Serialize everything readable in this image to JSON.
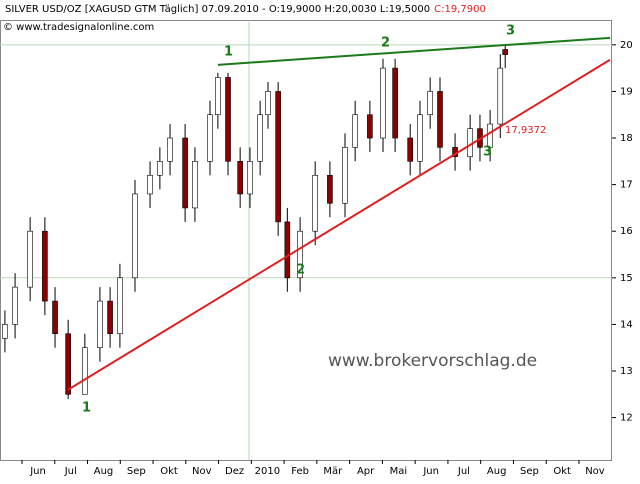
{
  "header": {
    "instrument": "SILVER USD/OZ [XAGUSD GTM  Täglich] 07.09.2010 - O:19,9000 H:20,0030 L:19,5000",
    "close": "C:19,7900",
    "copyright": "© www.tradesignalonline.com",
    "watermark": "www.brokervorschlag.de"
  },
  "chart_data": {
    "type": "candlestick",
    "x": [
      -1.01,
      -0.7,
      -0.24,
      0.21,
      0.52,
      0.92,
      1.43,
      1.89,
      2.2,
      2.5,
      2.96,
      3.42,
      3.72,
      4.03,
      4.49,
      4.79,
      5.25,
      5.49,
      5.8,
      6.17,
      6.47,
      6.78,
      7.02,
      7.33,
      7.61,
      8.0,
      8.46,
      8.91,
      9.37,
      9.68,
      10.13,
      10.53,
      10.9,
      11.36,
      11.66,
      11.97,
      12.27,
      12.73,
      13.19,
      13.49,
      13.8,
      14.11,
      14.26
    ],
    "open": [
      13.7,
      14,
      14.8,
      16,
      14.5,
      13.8,
      12.5,
      13.5,
      14.5,
      13.8,
      15,
      16.8,
      17.2,
      17.5,
      18,
      16.5,
      17.5,
      18.5,
      19.3,
      17.5,
      16.8,
      17.5,
      18.5,
      19,
      16.2,
      15,
      16,
      17.2,
      16.6,
      17.8,
      18.5,
      18,
      19.5,
      18,
      17.5,
      18.5,
      19,
      17.8,
      17.6,
      18.2,
      17.8,
      18.3,
      19.9
    ],
    "high": [
      14.3,
      15.1,
      16.3,
      16.3,
      14.8,
      14.1,
      13.8,
      14.8,
      14.8,
      15.3,
      17.1,
      17.5,
      17.8,
      18.3,
      18.3,
      17.8,
      18.8,
      19.4,
      19.4,
      17.8,
      17.8,
      18.8,
      19.2,
      19.2,
      16.5,
      16.3,
      17.5,
      17.5,
      18.1,
      18.8,
      18.8,
      19.7,
      19.7,
      18.3,
      18.8,
      19.3,
      19.3,
      18.1,
      18.5,
      18.5,
      18.6,
      19.8,
      20.003
    ],
    "low": [
      13.4,
      13.7,
      14.5,
      14.2,
      13.5,
      12.4,
      12.5,
      13.2,
      13.5,
      13.5,
      14.7,
      16.5,
      16.9,
      17.2,
      16.2,
      16.2,
      17.2,
      18.2,
      17.2,
      16.5,
      16.5,
      17.2,
      18.2,
      15.9,
      14.7,
      14.7,
      15.7,
      16.3,
      16.3,
      17.5,
      17.7,
      17.7,
      17.7,
      17.2,
      17.2,
      18.2,
      17.5,
      17.3,
      17.3,
      17.5,
      17.5,
      18.0,
      19.5
    ],
    "close": [
      14,
      14.8,
      16,
      14.5,
      13.8,
      12.5,
      13.5,
      14.5,
      13.8,
      15,
      16.8,
      17.2,
      17.5,
      18,
      16.5,
      17.5,
      18.5,
      19.3,
      17.5,
      16.8,
      17.5,
      18.5,
      19,
      16.2,
      15,
      16,
      17.2,
      16.6,
      17.8,
      18.5,
      18,
      19.5,
      18,
      17.5,
      18.5,
      19,
      17.8,
      17.6,
      18.2,
      17.8,
      18.3,
      19.5,
      19.79
    ],
    "up_color": "#ffffff",
    "down_color": "#8b0000",
    "xlim": [
      -1.16,
      17.52
    ],
    "ylim": [
      11.09,
      20.49
    ],
    "xticks": [
      {
        "value": 0,
        "label": "Jun"
      },
      {
        "value": 1,
        "label": "Jul"
      },
      {
        "value": 2,
        "label": "Aug"
      },
      {
        "value": 3,
        "label": "Sep"
      },
      {
        "value": 4,
        "label": "Okt"
      },
      {
        "value": 5,
        "label": "Nov"
      },
      {
        "value": 6,
        "label": "Dez"
      },
      {
        "value": 7,
        "label": "2010"
      },
      {
        "value": 8,
        "label": "Feb"
      },
      {
        "value": 9,
        "label": "Mär"
      },
      {
        "value": 10,
        "label": "Apr"
      },
      {
        "value": 11,
        "label": "Mai"
      },
      {
        "value": 12,
        "label": "Jun"
      },
      {
        "value": 13,
        "label": "Jul"
      },
      {
        "value": 14,
        "label": "Aug"
      },
      {
        "value": 15,
        "label": "Sep"
      },
      {
        "value": 16,
        "label": "Okt"
      },
      {
        "value": 17,
        "label": "Nov"
      }
    ],
    "yticks": [
      12,
      13,
      14,
      15,
      16,
      17,
      18,
      19,
      20
    ],
    "hlines": [
      20,
      15
    ],
    "vline": 6.44,
    "trendlines": [
      {
        "color": "#1a7a1a",
        "x": [
          5.49,
          17.46
        ],
        "y": [
          19.57,
          20.15
        ]
      },
      {
        "color": "#e02020",
        "x": [
          0.92,
          17.46
        ],
        "y": [
          12.6,
          19.68
        ]
      }
    ],
    "annotations": [
      {
        "text": "1",
        "color": "#1a7a1a"
      },
      {
        "text": "1",
        "color": "#1a7a1a"
      },
      {
        "text": "2",
        "color": "#1a7a1a"
      },
      {
        "text": "2",
        "color": "#1a7a1a"
      },
      {
        "text": "3",
        "color": "#1a7a1a"
      },
      {
        "text": "3",
        "color": "#1a7a1a"
      },
      {
        "text": "17,9372",
        "color": "#e02020"
      }
    ]
  }
}
